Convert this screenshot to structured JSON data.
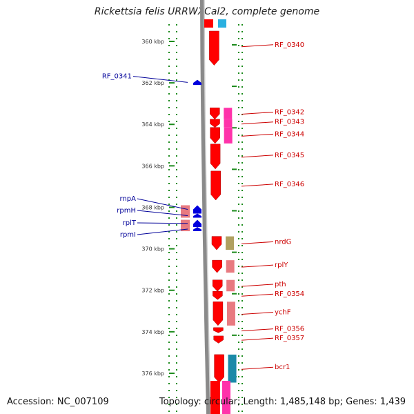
{
  "title": "Rickettsia felis URRWXCal2, complete genome",
  "footer": {
    "accession": "Accession: NC_007109",
    "topology": "Topology: circular; Length: 1,485,148 bp; Genes: 1,439"
  },
  "ticks": [
    {
      "label": "360 kbp",
      "kbp": 360
    },
    {
      "label": "362 kbp",
      "kbp": 362
    },
    {
      "label": "364 kbp",
      "kbp": 364
    },
    {
      "label": "366 kbp",
      "kbp": 366
    },
    {
      "label": "368 kbp",
      "kbp": 368
    },
    {
      "label": "370 kbp",
      "kbp": 370
    },
    {
      "label": "372 kbp",
      "kbp": 372
    },
    {
      "label": "374 kbp",
      "kbp": 374
    },
    {
      "label": "376 kbp",
      "kbp": 376
    }
  ],
  "genes_forward": [
    {
      "label": "RF_0340",
      "start_kbp": 359.5,
      "end_kbp": 361.15
    },
    {
      "label": "RF_0342",
      "start_kbp": 363.2,
      "end_kbp": 363.75
    },
    {
      "label": "RF_0343",
      "start_kbp": 363.75,
      "end_kbp": 364.15
    },
    {
      "label": "RF_0344",
      "start_kbp": 364.15,
      "end_kbp": 364.92
    },
    {
      "label": "RF_0345",
      "start_kbp": 364.95,
      "end_kbp": 366.15
    },
    {
      "label": "RF_0346",
      "start_kbp": 366.25,
      "end_kbp": 367.65
    },
    {
      "label": "nrdG",
      "start_kbp": 369.4,
      "end_kbp": 370.05
    },
    {
      "label": "rplY",
      "start_kbp": 370.55,
      "end_kbp": 371.15
    },
    {
      "label": "pth",
      "start_kbp": 371.5,
      "end_kbp": 372.05
    },
    {
      "label": "RF_0354",
      "start_kbp": 372.05,
      "end_kbp": 372.45
    },
    {
      "label": "ychF",
      "start_kbp": 372.55,
      "end_kbp": 373.7
    },
    {
      "label": "RF_0356",
      "start_kbp": 373.8,
      "end_kbp": 374.05
    },
    {
      "label": "RF_0357",
      "start_kbp": 374.2,
      "end_kbp": 374.55
    },
    {
      "label": "bcr1",
      "start_kbp": 375.1,
      "end_kbp": 376.45
    }
  ],
  "genes_reverse": [
    {
      "label": "RF_0341",
      "start_kbp": 361.85,
      "end_kbp": 362.1
    },
    {
      "label": "rnpA",
      "start_kbp": 367.9,
      "end_kbp": 368.3
    },
    {
      "label": "rpmH",
      "start_kbp": 368.3,
      "end_kbp": 368.5
    },
    {
      "label": "rplT",
      "start_kbp": 368.6,
      "end_kbp": 368.95
    },
    {
      "label": "rpmI",
      "start_kbp": 368.95,
      "end_kbp": 369.15
    }
  ],
  "colors": {
    "forward_gene": "#ff0000",
    "reverse_gene": "#0000dd",
    "forward_label": "#cc0000",
    "reverse_label": "#000099",
    "backbone": "#8a8a8a",
    "tick": "#1a8a1a",
    "cog_pink": "#e6609a",
    "cog_magenta": "#ff33aa",
    "cog_rose": "#e87a80",
    "cog_olive": "#b0a060",
    "cog_cyan": "#2ab0e0",
    "cog_teal": "#1a8aa8"
  }
}
